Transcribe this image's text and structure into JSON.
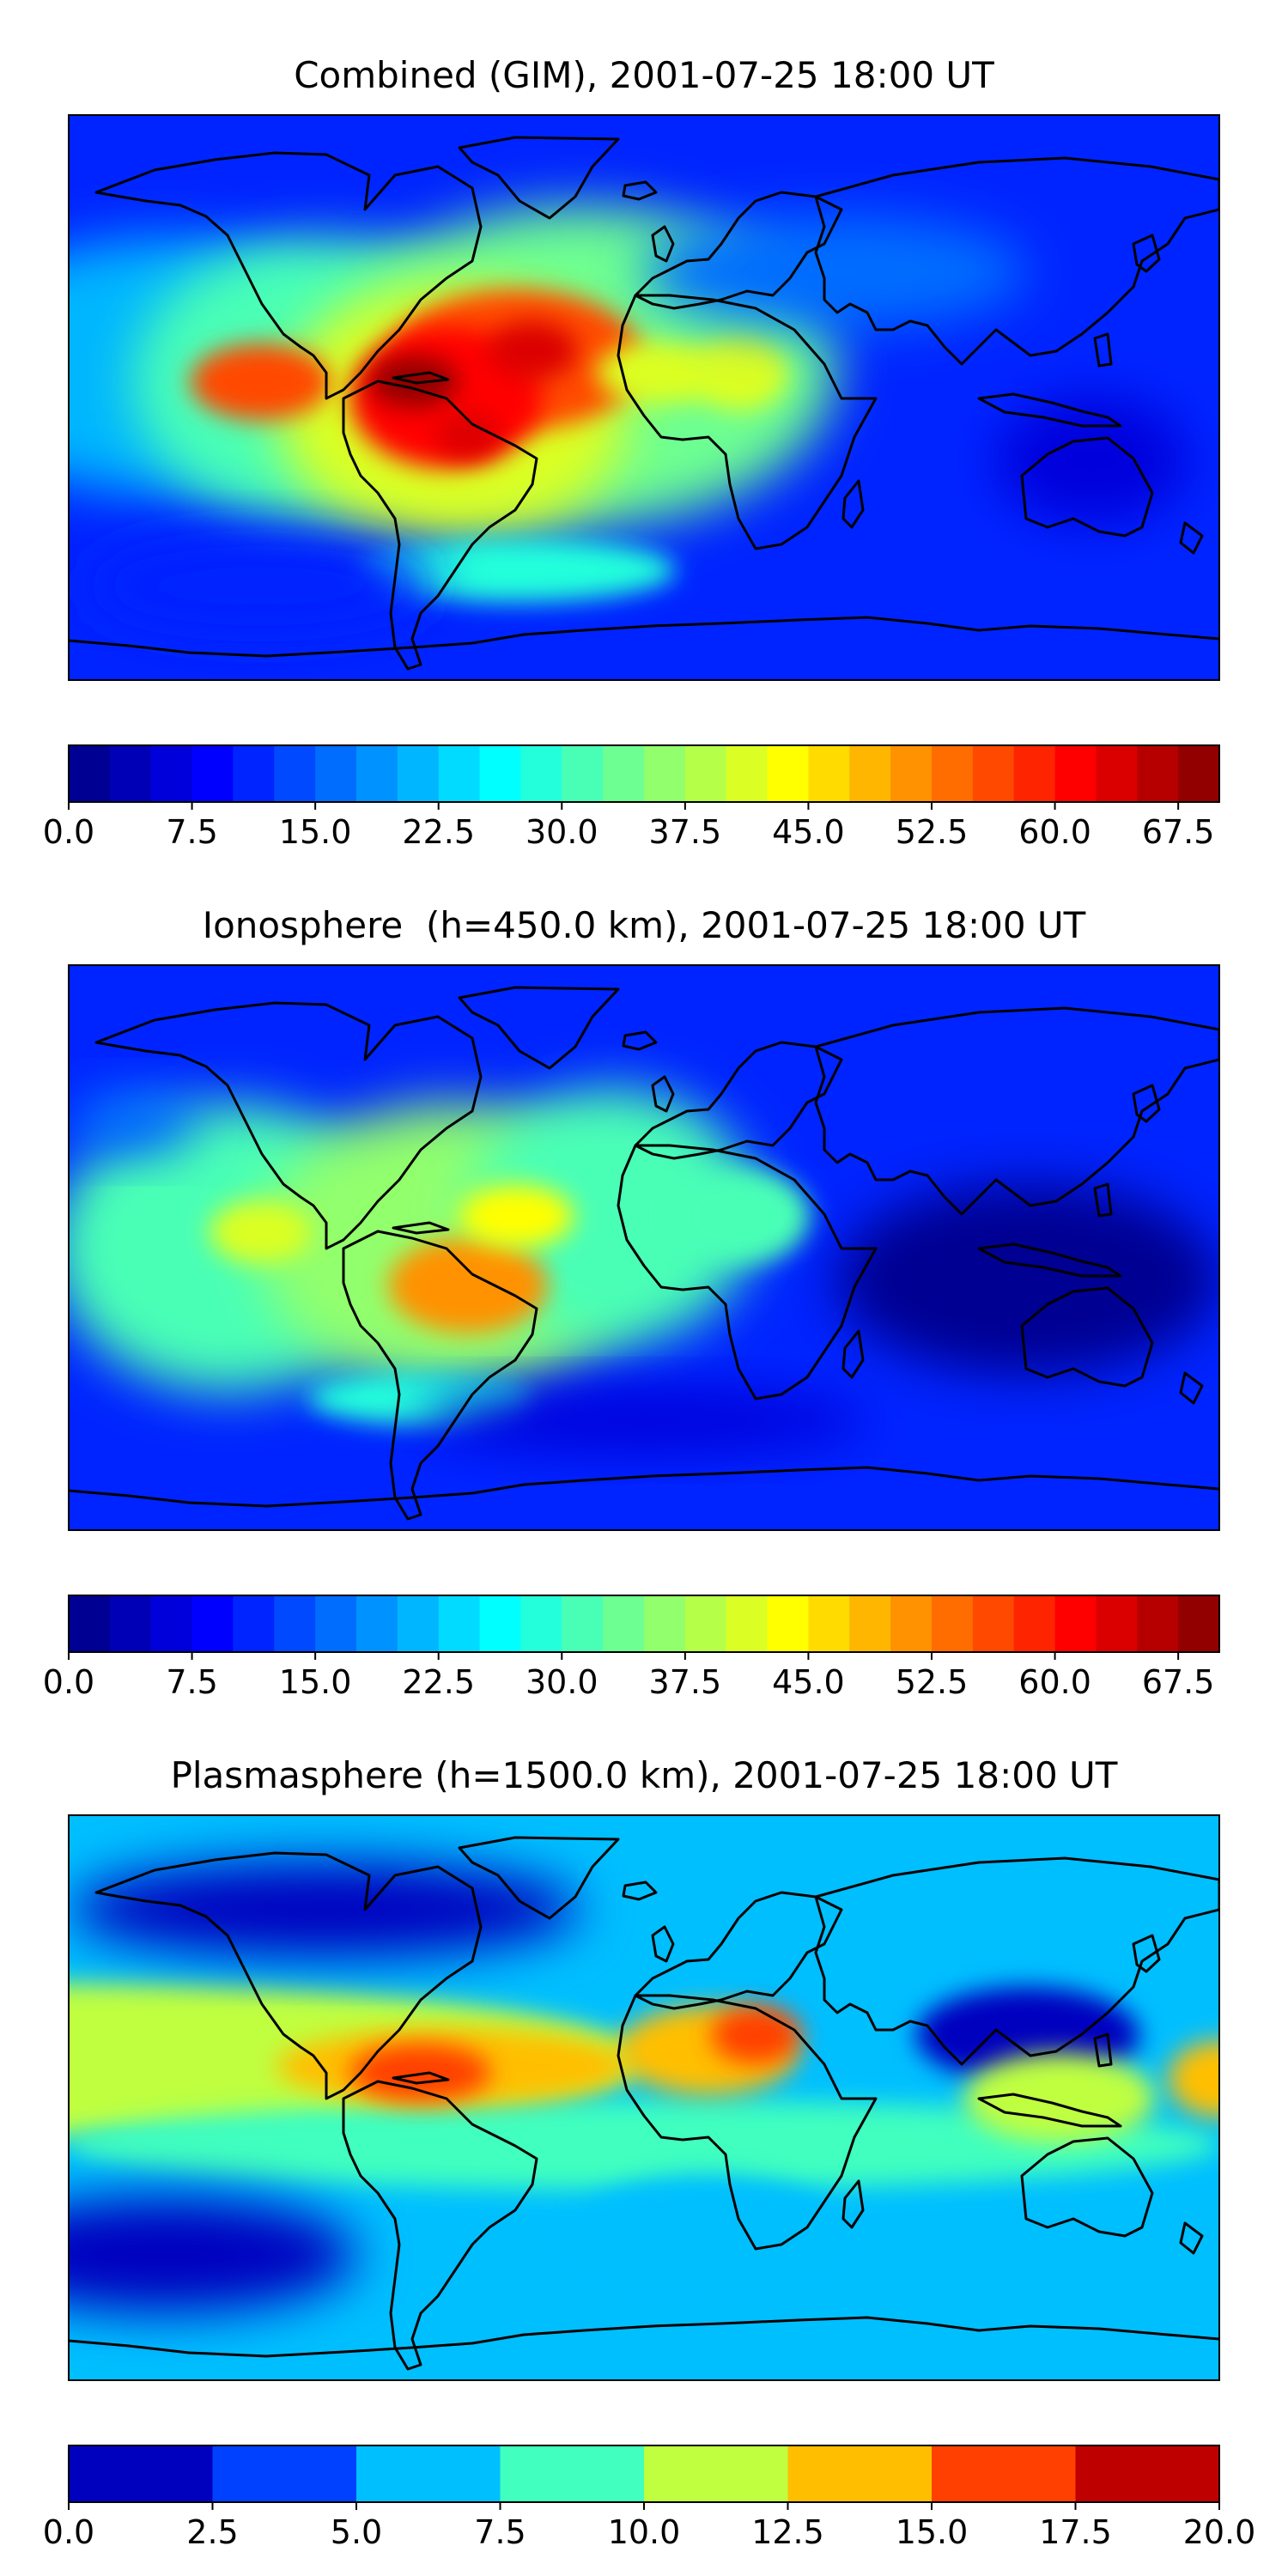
{
  "chart_data": [
    {
      "type": "heatmap",
      "title": "Combined (GIM), 2001-07-25 18:00 UT",
      "colorbar": {
        "ticks": [
          "0.0",
          "7.5",
          "15.0",
          "22.5",
          "30.0",
          "37.5",
          "45.0",
          "52.5",
          "60.0",
          "67.5"
        ],
        "vmin": 0,
        "vmax": 70,
        "levels": 28,
        "colormap": "jet"
      },
      "field_peaks": [
        {
          "region": "northern South America",
          "value": 68
        },
        {
          "region": "central South America",
          "value": 64
        },
        {
          "region": "equatorial Atlantic",
          "value": 63
        },
        {
          "region": "east Pacific",
          "value": 55
        }
      ]
    },
    {
      "type": "heatmap",
      "title": "Ionosphere  (h=450.0 km), 2001-07-25 18:00 UT",
      "colorbar": {
        "ticks": [
          "0.0",
          "7.5",
          "15.0",
          "22.5",
          "30.0",
          "37.5",
          "45.0",
          "52.5",
          "60.0",
          "67.5"
        ],
        "vmin": 0,
        "vmax": 70,
        "levels": 28,
        "colormap": "jet"
      },
      "field_peaks": [
        {
          "region": "central South America",
          "value": 50
        },
        {
          "region": "equatorial Atlantic",
          "value": 44
        },
        {
          "region": "east Pacific",
          "value": 40
        }
      ]
    },
    {
      "type": "heatmap",
      "title": "Plasmasphere (h=1500.0 km), 2001-07-25 18:00 UT",
      "colorbar": {
        "ticks": [
          "0.0",
          "2.5",
          "5.0",
          "7.5",
          "10.0",
          "12.5",
          "15.0",
          "17.5",
          "20.0"
        ],
        "vmin": 0,
        "vmax": 20,
        "levels": 8,
        "colormap": "jet"
      },
      "field_peaks": [
        {
          "region": "northern South America",
          "value": 16.5
        },
        {
          "region": "North Africa",
          "value": 16
        },
        {
          "region": "east Pacific",
          "value": 13
        }
      ]
    }
  ]
}
